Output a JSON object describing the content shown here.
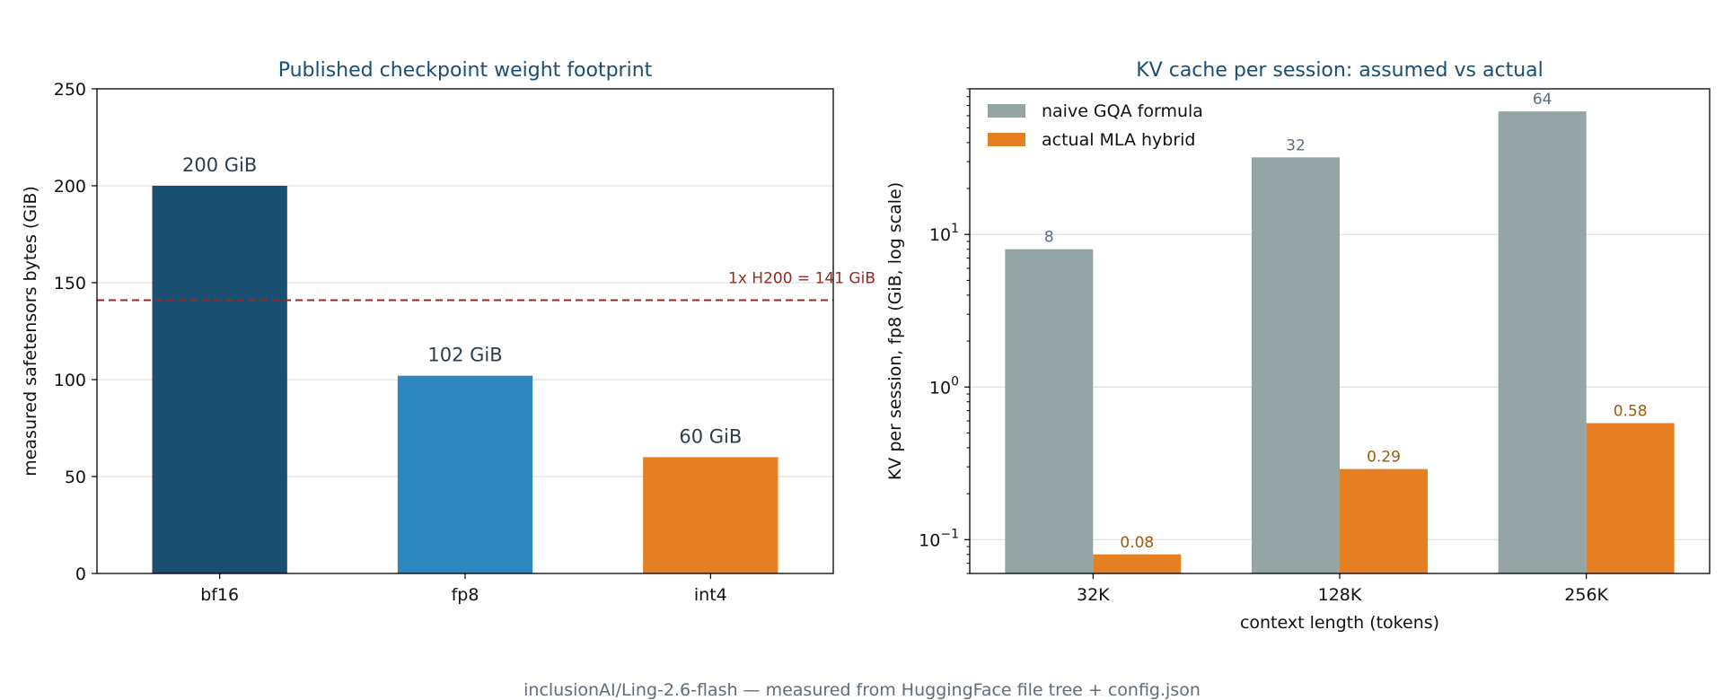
{
  "footer": "inclusionAI/Ling-2.6-flash — measured from HuggingFace file tree + config.json",
  "chart_data": [
    {
      "type": "bar",
      "title": "Published checkpoint weight footprint",
      "xlabel": "",
      "ylabel": "measured safetensors bytes (GiB)",
      "categories": [
        "bf16",
        "fp8",
        "int4"
      ],
      "values": [
        200,
        102,
        60
      ],
      "data_labels": [
        "200 GiB",
        "102 GiB",
        "60 GiB"
      ],
      "colors": [
        "#1b4f72",
        "#2e86c1",
        "#e67e22"
      ],
      "ylim": [
        0,
        250
      ],
      "yticks": [
        0,
        50,
        100,
        150,
        200,
        250
      ],
      "ytick_labels": [
        "0",
        "50",
        "100",
        "150",
        "200",
        "250"
      ],
      "grid": "y",
      "reference_line": {
        "value": 141,
        "label": "1x H200 = 141 GiB",
        "color": "#922b21",
        "style": "dashed"
      }
    },
    {
      "type": "bar",
      "title": "KV cache per session: assumed vs actual",
      "xlabel": "context length (tokens)",
      "ylabel": "KV per session, fp8 (GiB, log scale)",
      "yscale": "log",
      "categories": [
        "32K",
        "128K",
        "256K"
      ],
      "ylim": [
        0.06,
        90
      ],
      "ytick_values": [
        0.1,
        1,
        10
      ],
      "ytick_labels": [
        {
          "base": "10",
          "exp": "−1"
        },
        {
          "base": "10",
          "exp": "0"
        },
        {
          "base": "10",
          "exp": "1"
        }
      ],
      "grid": "y",
      "legend_position": "top-left",
      "series": [
        {
          "name": "naive GQA formula",
          "values": [
            8,
            32,
            64
          ],
          "data_labels": [
            "8",
            "32",
            "64"
          ],
          "color": "#95a5a6",
          "label_color": "#5d6d7e"
        },
        {
          "name": "actual MLA hybrid",
          "values": [
            0.08,
            0.29,
            0.58
          ],
          "data_labels": [
            "0.08",
            "0.29",
            "0.58"
          ],
          "color": "#e67e22",
          "label_color": "#9c5a0f"
        }
      ]
    }
  ]
}
